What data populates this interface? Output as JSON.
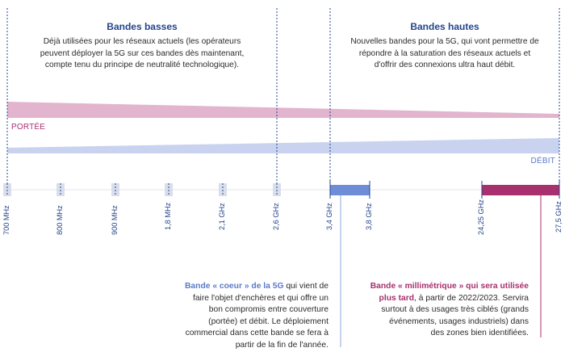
{
  "low_bands": {
    "title": "Bandes basses",
    "description_lines": [
      "Déjà utilisées pour les réseaux actuels (les opérateurs",
      "peuvent déployer la 5G sur ces bandes dès maintenant,",
      "compte tenu du principe de neutralité technologique)."
    ]
  },
  "high_bands": {
    "title": "Bandes hautes",
    "description_lines": [
      "Nouvelles bandes pour la 5G, qui vont permettre de",
      "répondre à la saturation des réseaux actuels et",
      "d'offrir des connexions ultra haut débit."
    ]
  },
  "range_label": "PORTÉE",
  "throughput_label": "DÉBIT",
  "frequencies": [
    "700 MHz",
    "800 MHz",
    "900 MHz",
    "1,8 MHz",
    "2,1 GHz",
    "2,6 GHz",
    "3,4 GHz",
    "3,8 GHz",
    "24,25 GHz",
    "27,5 GHz"
  ],
  "core_band": {
    "highlight": "Bande « coeur » de la 5G",
    "text_first": " qui vient de",
    "lines": [
      "faire l'objet d'enchères et qui offre un",
      "bon compromis entre couverture",
      "(portée) et débit. Le déploiement",
      "commercial dans cette bande se fera à",
      "partir de la fin de l'année."
    ]
  },
  "mm_band": {
    "highlight_lines": [
      "Bande « millimétrique » qui sera utilisée",
      "plus tard"
    ],
    "text_after": ", à partir de 2022/2023. Servira",
    "lines": [
      "surtout à des usages très ciblés (grands",
      "événements, usages industriels) dans",
      "des zones bien identifiées."
    ]
  },
  "colors": {
    "navy": "#24458c",
    "range_band": "#e2b4cd",
    "throughput_band": "#c9d3ef",
    "core_band": "#6f8dd6",
    "mm_band": "#a8306f"
  }
}
